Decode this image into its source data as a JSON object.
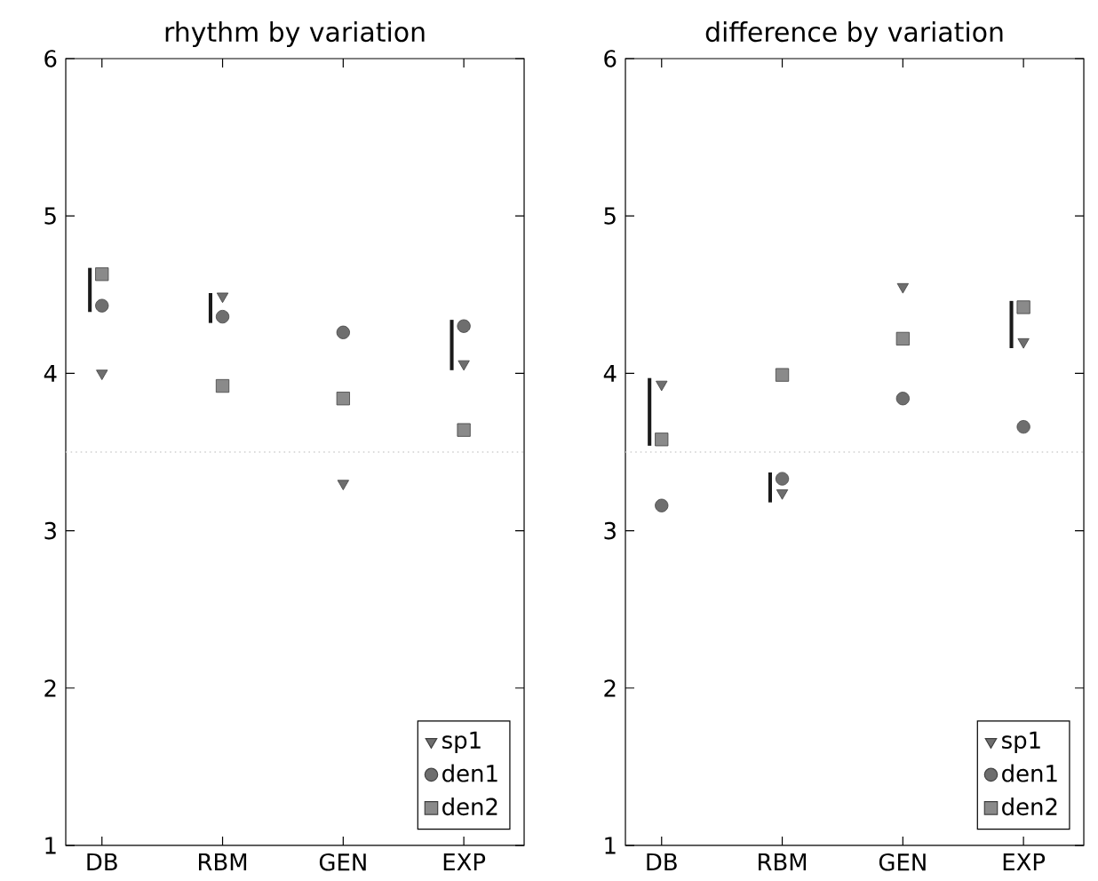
{
  "chart_data": [
    {
      "type": "scatter",
      "title": "rhythm by variation",
      "categories": [
        "DB",
        "RBM",
        "GEN",
        "EXP"
      ],
      "ylim": [
        1,
        6
      ],
      "yticks": [
        1,
        2,
        3,
        4,
        5,
        6
      ],
      "legend": "bottom right",
      "ref_lines": [
        {
          "axis": "y",
          "value": 3.5,
          "color": "#d0d0d0",
          "line_style": "dotted"
        }
      ],
      "series": [
        {
          "name": "sp1",
          "marker": "triangle",
          "color": "#6e6e6e",
          "values": [
            4.0,
            4.49,
            3.3,
            4.06
          ]
        },
        {
          "name": "den1",
          "marker": "circle",
          "color": "#6e6e6e",
          "values": [
            4.43,
            4.36,
            4.26,
            4.3
          ]
        },
        {
          "name": "den2",
          "marker": "square",
          "color": "#8a8a8a",
          "values": [
            4.63,
            3.92,
            3.84,
            3.64
          ]
        },
        {
          "type": "bar",
          "color": "#1a1a1a",
          "base": [
            4.39,
            4.32,
            null,
            4.02
          ],
          "values": [
            0.28,
            0.19,
            null,
            0.32
          ]
        }
      ]
    },
    {
      "type": "scatter",
      "title": "difference by variation",
      "categories": [
        "DB",
        "RBM",
        "GEN",
        "EXP"
      ],
      "ylim": [
        1,
        6
      ],
      "yticks": [
        1,
        2,
        3,
        4,
        5,
        6
      ],
      "legend": "bottom right",
      "ref_lines": [
        {
          "axis": "y",
          "value": 3.5,
          "color": "#d0d0d0",
          "line_style": "dotted"
        }
      ],
      "series": [
        {
          "name": "sp1",
          "marker": "triangle",
          "color": "#6e6e6e",
          "values": [
            3.93,
            3.24,
            4.55,
            4.2
          ]
        },
        {
          "name": "den1",
          "marker": "circle",
          "color": "#6e6e6e",
          "values": [
            3.16,
            3.33,
            3.84,
            3.66
          ]
        },
        {
          "name": "den2",
          "marker": "square",
          "color": "#8a8a8a",
          "values": [
            3.58,
            3.99,
            4.22,
            4.42
          ]
        },
        {
          "type": "bar",
          "color": "#1a1a1a",
          "base": [
            3.54,
            3.18,
            null,
            4.16
          ],
          "values": [
            0.43,
            0.19,
            null,
            0.3
          ]
        }
      ]
    }
  ]
}
